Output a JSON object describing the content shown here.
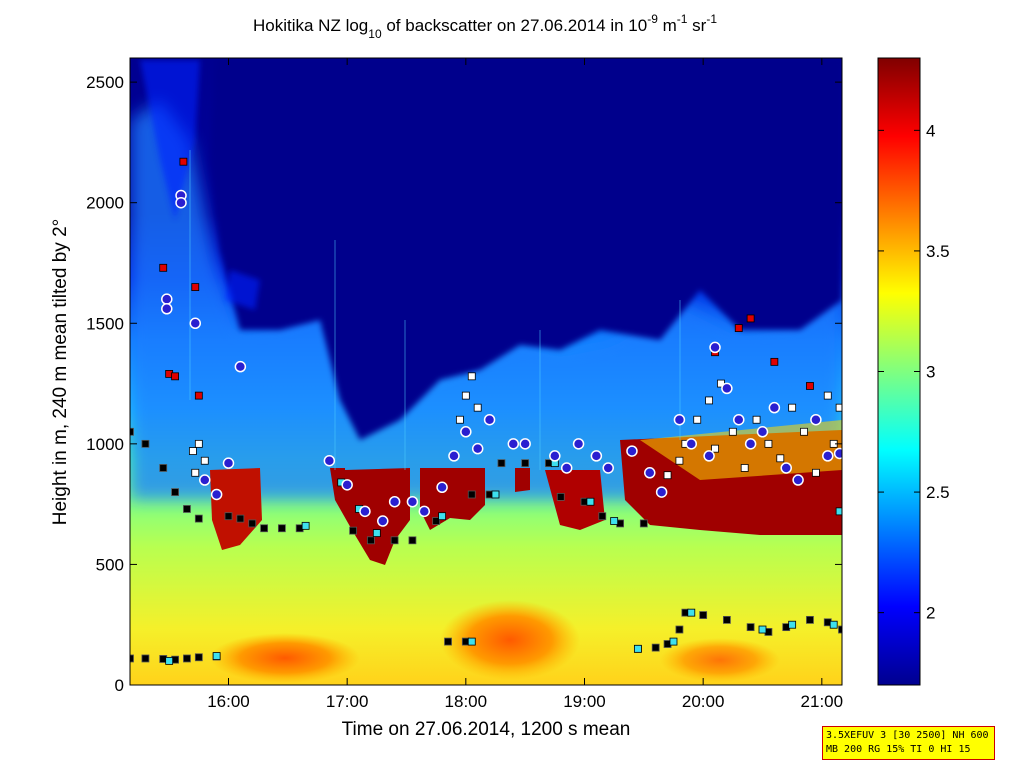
{
  "chart_data": {
    "type": "heatmap",
    "title": {
      "prefix": "Hokitika NZ log",
      "sub": "10",
      "middle": " of backscatter on 27.06.2014 in 10",
      "sup1": "-9",
      "unit1": " m",
      "sup2": "-1",
      "unit2": " sr",
      "sup3": "-1"
    },
    "xlabel": "Time on 27.06.2014, 1200 s mean",
    "ylabel": "Height in m, 240 m mean tilted by 2°",
    "xlim": [
      15.17,
      21.17
    ],
    "ylim": [
      0,
      2600
    ],
    "xticks": [
      {
        "value": 16,
        "label": "16:00"
      },
      {
        "value": 17,
        "label": "17:00"
      },
      {
        "value": 18,
        "label": "18:00"
      },
      {
        "value": 19,
        "label": "19:00"
      },
      {
        "value": 20,
        "label": "20:00"
      },
      {
        "value": 21,
        "label": "21:00"
      }
    ],
    "yticks": [
      {
        "value": 0,
        "label": "0"
      },
      {
        "value": 500,
        "label": "500"
      },
      {
        "value": 1000,
        "label": "1000"
      },
      {
        "value": 1500,
        "label": "1500"
      },
      {
        "value": 2000,
        "label": "2000"
      },
      {
        "value": 2500,
        "label": "2500"
      }
    ],
    "colorbar": {
      "range": [
        1.7,
        4.3
      ],
      "colormap": "jet",
      "ticks": [
        {
          "value": 2,
          "label": "2"
        },
        {
          "value": 2.5,
          "label": "2.5"
        },
        {
          "value": 3,
          "label": "3"
        },
        {
          "value": 3.5,
          "label": "3.5"
        },
        {
          "value": 4,
          "label": "4"
        }
      ]
    },
    "series": [
      {
        "marker": "square-black",
        "points": [
          [
            15.17,
            110
          ],
          [
            15.3,
            110
          ],
          [
            15.45,
            108
          ],
          [
            15.55,
            105
          ],
          [
            15.65,
            110
          ],
          [
            15.75,
            115
          ],
          [
            15.9,
            118
          ],
          [
            15.17,
            1050
          ],
          [
            15.3,
            1000
          ],
          [
            15.45,
            900
          ],
          [
            15.55,
            800
          ],
          [
            15.65,
            730
          ],
          [
            15.75,
            690
          ],
          [
            16.0,
            700
          ],
          [
            16.1,
            690
          ],
          [
            16.2,
            670
          ],
          [
            16.3,
            650
          ],
          [
            16.45,
            650
          ],
          [
            16.6,
            650
          ],
          [
            17.05,
            640
          ],
          [
            17.2,
            600
          ],
          [
            17.4,
            600
          ],
          [
            17.55,
            600
          ],
          [
            17.75,
            680
          ],
          [
            17.85,
            180
          ],
          [
            18.0,
            180
          ],
          [
            18.05,
            790
          ],
          [
            18.2,
            790
          ],
          [
            18.3,
            920
          ],
          [
            18.5,
            920
          ],
          [
            18.7,
            920
          ],
          [
            18.8,
            780
          ],
          [
            19.0,
            760
          ],
          [
            19.15,
            700
          ],
          [
            19.3,
            670
          ],
          [
            19.5,
            670
          ],
          [
            19.45,
            150
          ],
          [
            19.6,
            155
          ],
          [
            19.7,
            170
          ],
          [
            19.8,
            230
          ],
          [
            19.85,
            300
          ],
          [
            20.0,
            290
          ],
          [
            20.2,
            270
          ],
          [
            20.4,
            240
          ],
          [
            20.55,
            220
          ],
          [
            20.7,
            240
          ],
          [
            20.9,
            270
          ],
          [
            21.05,
            260
          ],
          [
            21.17,
            230
          ]
        ]
      },
      {
        "marker": "square-cyan",
        "points": [
          [
            15.5,
            100
          ],
          [
            15.9,
            120
          ],
          [
            16.65,
            660
          ],
          [
            16.85,
            930
          ],
          [
            16.95,
            840
          ],
          [
            17.1,
            730
          ],
          [
            17.25,
            630
          ],
          [
            17.8,
            700
          ],
          [
            18.05,
            180
          ],
          [
            18.25,
            790
          ],
          [
            18.75,
            920
          ],
          [
            19.05,
            760
          ],
          [
            19.25,
            680
          ],
          [
            19.45,
            150
          ],
          [
            19.75,
            180
          ],
          [
            19.9,
            300
          ],
          [
            20.5,
            230
          ],
          [
            20.75,
            250
          ],
          [
            21.1,
            250
          ],
          [
            21.15,
            720
          ]
        ]
      },
      {
        "marker": "square-white",
        "points": [
          [
            15.7,
            970
          ],
          [
            15.75,
            1000
          ],
          [
            15.72,
            880
          ],
          [
            15.8,
            930
          ],
          [
            17.95,
            1100
          ],
          [
            18.0,
            1200
          ],
          [
            18.05,
            1280
          ],
          [
            18.1,
            1150
          ],
          [
            19.7,
            870
          ],
          [
            19.8,
            930
          ],
          [
            19.85,
            1000
          ],
          [
            19.95,
            1100
          ],
          [
            20.05,
            1180
          ],
          [
            20.1,
            980
          ],
          [
            20.15,
            1250
          ],
          [
            20.25,
            1050
          ],
          [
            20.35,
            900
          ],
          [
            20.45,
            1100
          ],
          [
            20.55,
            1000
          ],
          [
            20.65,
            940
          ],
          [
            20.75,
            1150
          ],
          [
            20.85,
            1050
          ],
          [
            20.95,
            880
          ],
          [
            21.05,
            1200
          ],
          [
            21.1,
            1000
          ],
          [
            21.15,
            1150
          ]
        ]
      },
      {
        "marker": "square-red",
        "points": [
          [
            15.45,
            1730
          ],
          [
            15.5,
            1290
          ],
          [
            15.55,
            1280
          ],
          [
            15.62,
            2170
          ],
          [
            15.72,
            1650
          ],
          [
            15.75,
            1200
          ],
          [
            20.3,
            1480
          ],
          [
            20.4,
            1520
          ],
          [
            20.1,
            1380
          ],
          [
            20.6,
            1340
          ],
          [
            20.9,
            1240
          ]
        ]
      },
      {
        "marker": "circle-blue",
        "points": [
          [
            15.48,
            1600
          ],
          [
            15.48,
            1560
          ],
          [
            15.6,
            2030
          ],
          [
            15.6,
            2000
          ],
          [
            15.72,
            1500
          ],
          [
            15.8,
            850
          ],
          [
            15.9,
            790
          ],
          [
            16.0,
            920
          ],
          [
            16.1,
            1320
          ],
          [
            16.85,
            930
          ],
          [
            17.0,
            830
          ],
          [
            17.15,
            720
          ],
          [
            17.3,
            680
          ],
          [
            17.4,
            760
          ],
          [
            17.55,
            760
          ],
          [
            17.65,
            720
          ],
          [
            17.8,
            820
          ],
          [
            17.9,
            950
          ],
          [
            18.0,
            1050
          ],
          [
            18.1,
            980
          ],
          [
            18.2,
            1100
          ],
          [
            18.4,
            1000
          ],
          [
            18.5,
            1000
          ],
          [
            18.75,
            950
          ],
          [
            18.85,
            900
          ],
          [
            18.95,
            1000
          ],
          [
            19.1,
            950
          ],
          [
            19.2,
            900
          ],
          [
            19.4,
            970
          ],
          [
            19.55,
            880
          ],
          [
            19.65,
            800
          ],
          [
            19.8,
            1100
          ],
          [
            19.9,
            1000
          ],
          [
            20.05,
            950
          ],
          [
            20.1,
            1400
          ],
          [
            20.2,
            1230
          ],
          [
            20.3,
            1100
          ],
          [
            20.4,
            1000
          ],
          [
            20.5,
            1050
          ],
          [
            20.6,
            1150
          ],
          [
            20.7,
            900
          ],
          [
            20.8,
            850
          ],
          [
            20.95,
            1100
          ],
          [
            21.05,
            950
          ],
          [
            21.15,
            960
          ]
        ]
      }
    ]
  },
  "info_box": {
    "line1": "3.5XEFUV 3 [30 2500] NH 600",
    "line2": "MB 200 RG 15% TI 0 HI 15"
  }
}
